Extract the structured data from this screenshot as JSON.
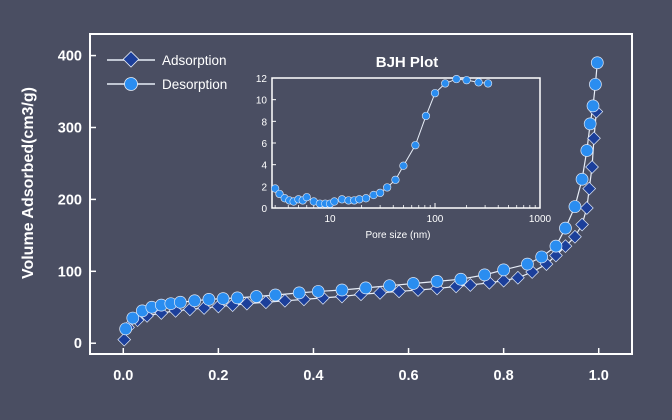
{
  "chart_data": [
    {
      "type": "line",
      "title": "",
      "xlabel": "",
      "ylabel": "Volume Adsorbed(cm3/g)",
      "xlim": [
        -0.07,
        1.07
      ],
      "ylim": [
        -15,
        430
      ],
      "x_ticks": [
        "0.0",
        "0.2",
        "0.4",
        "0.6",
        "0.8",
        "1.0"
      ],
      "y_ticks": [
        "0",
        "100",
        "200",
        "300",
        "400"
      ],
      "legend_position": "top-left",
      "grid": false,
      "series": [
        {
          "name": "Adsorption",
          "marker": "diamond",
          "color": "#1c3f9a",
          "x": [
            0.002,
            0.01,
            0.03,
            0.05,
            0.08,
            0.11,
            0.14,
            0.17,
            0.2,
            0.23,
            0.26,
            0.3,
            0.34,
            0.38,
            0.42,
            0.46,
            0.5,
            0.54,
            0.58,
            0.62,
            0.66,
            0.7,
            0.73,
            0.77,
            0.8,
            0.83,
            0.86,
            0.89,
            0.91,
            0.93,
            0.95,
            0.965,
            0.975,
            0.98,
            0.986,
            0.99,
            0.995
          ],
          "y": [
            5,
            22,
            32,
            38,
            42,
            45,
            47,
            49,
            51,
            53,
            55,
            57,
            59,
            61,
            63,
            65,
            68,
            70,
            72,
            74,
            76,
            79,
            81,
            84,
            87,
            91,
            99,
            110,
            122,
            135,
            148,
            165,
            188,
            215,
            245,
            285,
            322
          ]
        },
        {
          "name": "Desorption",
          "marker": "circle",
          "color": "#2a8df0",
          "x": [
            0.005,
            0.02,
            0.04,
            0.06,
            0.08,
            0.1,
            0.12,
            0.15,
            0.18,
            0.21,
            0.24,
            0.28,
            0.32,
            0.37,
            0.41,
            0.46,
            0.51,
            0.56,
            0.61,
            0.66,
            0.71,
            0.76,
            0.8,
            0.85,
            0.88,
            0.91,
            0.93,
            0.95,
            0.965,
            0.975,
            0.982,
            0.988,
            0.993,
            0.997
          ],
          "y": [
            20,
            35,
            45,
            50,
            53,
            55,
            57,
            59,
            61,
            62,
            63,
            65,
            67,
            70,
            72,
            74,
            77,
            80,
            83,
            86,
            89,
            95,
            102,
            110,
            120,
            135,
            160,
            190,
            228,
            268,
            305,
            330,
            360,
            390
          ]
        }
      ]
    },
    {
      "type": "line",
      "title": "BJH Plot",
      "xlabel": "Pore size (nm)",
      "ylabel": "",
      "xscale": "log",
      "xlim": [
        2.8,
        1000
      ],
      "ylim": [
        0,
        12
      ],
      "x_ticks": [
        "10",
        "100",
        "1000"
      ],
      "y_ticks": [
        "0",
        "2",
        "4",
        "6",
        "8",
        "10",
        "12"
      ],
      "grid": false,
      "series": [
        {
          "marker": "circle",
          "color": "#2a8df0",
          "x": [
            3,
            3.3,
            3.7,
            4.1,
            4.5,
            5,
            5.5,
            6,
            7,
            8,
            9,
            10,
            11,
            13,
            15,
            17,
            19,
            22,
            26,
            30,
            35,
            42,
            50,
            65,
            82,
            100,
            125,
            160,
            200,
            260,
            320
          ],
          "y": [
            1.8,
            1.3,
            0.9,
            0.7,
            0.6,
            0.8,
            0.7,
            1.0,
            0.6,
            0.4,
            0.4,
            0.4,
            0.6,
            0.8,
            0.7,
            0.7,
            0.8,
            0.9,
            1.2,
            1.4,
            1.9,
            2.6,
            3.9,
            5.8,
            8.5,
            10.6,
            11.5,
            11.9,
            11.8,
            11.6,
            11.5
          ]
        }
      ]
    }
  ]
}
